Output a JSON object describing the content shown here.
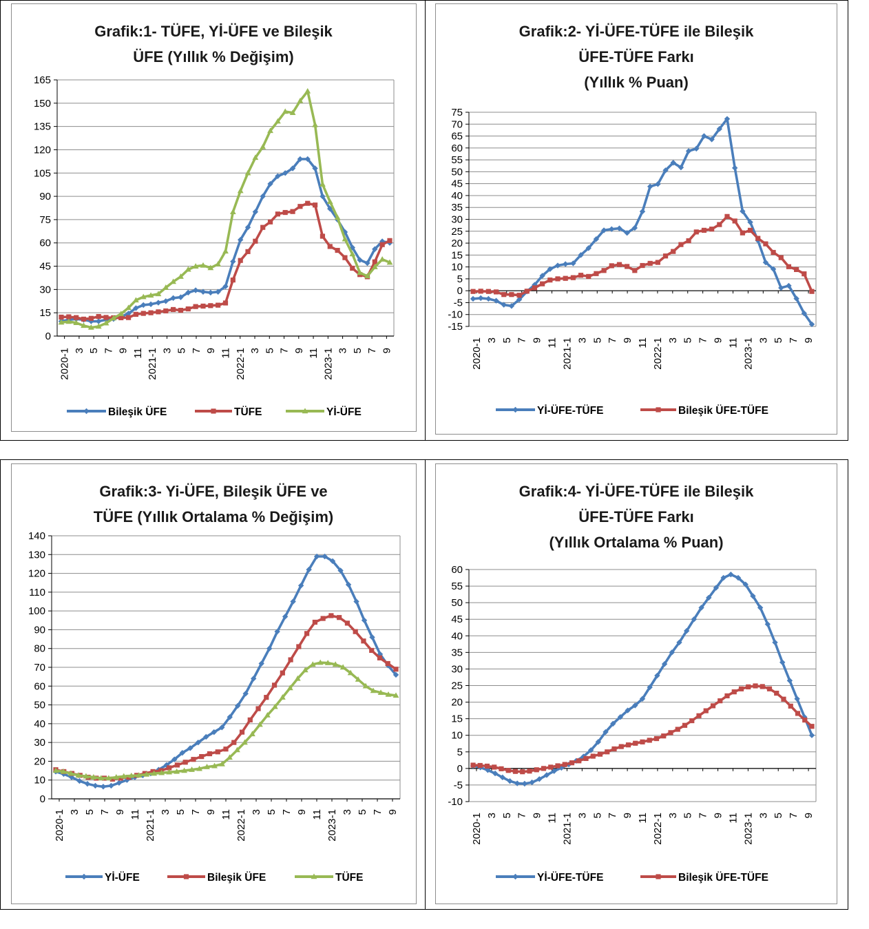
{
  "colors": {
    "blue": "#4a7ebb",
    "red": "#be4b48",
    "green": "#98b954",
    "grid": "#8c8c8c",
    "axis": "#000000"
  },
  "chart_data": [
    {
      "id": "chart1",
      "type": "line",
      "title_lines": [
        "Grafik:1- TÜFE, Yİ-ÜFE ve Bileşik",
        "ÜFE (Yıllık % Değişim)"
      ],
      "ylim": [
        0,
        165
      ],
      "yticks": [
        0,
        15,
        30,
        45,
        60,
        75,
        90,
        105,
        120,
        135,
        150,
        165
      ],
      "x_ticks": [
        "2020-1",
        "3",
        "5",
        "7",
        "9",
        "11",
        "2021-1",
        "3",
        "5",
        "7",
        "9",
        "11",
        "2022-1",
        "3",
        "5",
        "7",
        "9",
        "11",
        "2023-1",
        "3",
        "5",
        "7",
        "9"
      ],
      "legend": [
        "Bileşik ÜFE",
        "TÜFE",
        "Yİ-ÜFE"
      ],
      "series": [
        {
          "name": "Bileşik ÜFE",
          "color": "blue",
          "marker": "diamond",
          "values": [
            9.5,
            10.5,
            11,
            10.5,
            9.5,
            9.5,
            10.5,
            11,
            12.5,
            14.5,
            18,
            20,
            20.5,
            21.5,
            22.5,
            24.5,
            25,
            28,
            29.5,
            28.5,
            28,
            28.5,
            32,
            48,
            62,
            70,
            80,
            90,
            98,
            103,
            105,
            108,
            114,
            114,
            108,
            90,
            82,
            75,
            67,
            57,
            49,
            47,
            56,
            61,
            60
          ]
        },
        {
          "name": "TÜFE",
          "color": "red",
          "marker": "square",
          "values": [
            12.2,
            12.4,
            11.9,
            10.9,
            11.4,
            12.6,
            12.0,
            11.8,
            11.8,
            11.9,
            14.0,
            14.6,
            15.0,
            15.6,
            16.2,
            17.1,
            16.6,
            17.5,
            19.0,
            19.3,
            19.6,
            19.9,
            21.3,
            36.1,
            48.7,
            54.4,
            61.1,
            70.0,
            73.5,
            78.6,
            79.6,
            80.2,
            83.5,
            85.5,
            84.4,
            64.3,
            57.7,
            55.2,
            50.5,
            43.7,
            39.6,
            38.2,
            47.8,
            58.9,
            61.5
          ]
        },
        {
          "name": "Yİ-ÜFE",
          "color": "green",
          "marker": "triangle",
          "values": [
            8.8,
            9.3,
            8.5,
            6.7,
            5.5,
            6.2,
            8.3,
            11.5,
            14.3,
            18.2,
            23.1,
            25.2,
            26.2,
            27.1,
            31.2,
            35.0,
            38.3,
            42.9,
            44.9,
            45.5,
            43.9,
            46.3,
            54.6,
            79.9,
            93.5,
            105.0,
            114.9,
            121.8,
            132.2,
            138.3,
            144.6,
            143.8,
            151.5,
            157.7,
            136.0,
            97.7,
            86.5,
            76.3,
            62.4,
            52.8,
            40.8,
            38.6,
            44.5,
            49.4,
            47.4
          ]
        }
      ]
    },
    {
      "id": "chart2",
      "type": "line",
      "title_lines": [
        "Grafik:2- Yİ-ÜFE-TÜFE ile  Bileşik",
        "ÜFE-TÜFE Farkı",
        "(Yıllık % Puan)"
      ],
      "ylim": [
        -15,
        75
      ],
      "yticks": [
        -15,
        -10,
        -5,
        0,
        5,
        10,
        15,
        20,
        25,
        30,
        35,
        40,
        45,
        50,
        55,
        60,
        65,
        70,
        75
      ],
      "x_ticks": [
        "2020-1",
        "3",
        "5",
        "7",
        "9",
        "11",
        "2021-1",
        "3",
        "5",
        "7",
        "9",
        "11",
        "2022-1",
        "3",
        "5",
        "7",
        "9",
        "11",
        "2023-1",
        "3",
        "5",
        "7",
        "9"
      ],
      "legend": [
        "Yİ-ÜFE-TÜFE",
        "Bileşik ÜFE-TÜFE"
      ],
      "series": [
        {
          "name": "Yİ-ÜFE-TÜFE",
          "color": "blue",
          "marker": "diamond",
          "values": [
            -3.4,
            -3.1,
            -3.4,
            -4.2,
            -5.9,
            -6.4,
            -3.7,
            -0.3,
            2.5,
            6.3,
            9.1,
            10.6,
            11.2,
            11.5,
            15.0,
            17.9,
            21.7,
            25.4,
            25.9,
            26.2,
            24.3,
            26.4,
            33.3,
            43.8,
            44.8,
            50.6,
            53.8,
            51.8,
            58.7,
            59.7,
            65.0,
            63.6,
            68.0,
            72.2,
            51.6,
            33.4,
            28.8,
            21.1,
            11.9,
            9.1,
            1.2,
            2.1,
            -3.3,
            -9.5,
            -14.1
          ]
        },
        {
          "name": "Bileşik ÜFE-TÜFE",
          "color": "red",
          "marker": "square",
          "values": [
            -0.3,
            -0.2,
            -0.3,
            -0.5,
            -1.6,
            -1.6,
            -1.9,
            -0.2,
            1.2,
            2.9,
            4.5,
            5.0,
            5.2,
            5.5,
            6.5,
            6.0,
            7.2,
            8.5,
            10.5,
            11.0,
            10.2,
            8.5,
            10.6,
            11.5,
            11.9,
            14.6,
            16.5,
            19.4,
            21.0,
            24.7,
            25.4,
            25.9,
            27.8,
            31.2,
            29.3,
            24.3,
            25.4,
            22.0,
            19.7,
            16.1,
            13.9,
            10.1,
            8.9,
            7.1,
            -0.3
          ]
        }
      ]
    },
    {
      "id": "chart3",
      "type": "line",
      "title_lines": [
        "Grafik:3- Yi-ÜFE, Bileşik ÜFE ve",
        "TÜFE (Yıllık Ortalama % Değişim)"
      ],
      "ylim": [
        0,
        140
      ],
      "yticks": [
        0,
        10,
        20,
        30,
        40,
        50,
        60,
        70,
        80,
        90,
        100,
        110,
        120,
        130,
        140
      ],
      "x_ticks": [
        "2020-1",
        "3",
        "5",
        "7",
        "9",
        "11",
        "2021-1",
        "3",
        "5",
        "7",
        "9",
        "11",
        "2022-1",
        "3",
        "5",
        "7",
        "9",
        "11",
        "2023-1",
        "3",
        "5",
        "7",
        "9"
      ],
      "legend": [
        "Yİ-ÜFE",
        "Bileşik ÜFE",
        "TÜFE"
      ],
      "series": [
        {
          "name": "Yİ-ÜFE",
          "color": "blue",
          "marker": "diamond",
          "values": [
            14.5,
            13.2,
            11.5,
            9.5,
            8,
            7,
            6.5,
            7,
            8.5,
            10,
            11.5,
            12.5,
            13.5,
            15.5,
            18,
            21,
            24.5,
            27,
            30,
            33,
            35.5,
            38,
            43.5,
            49.5,
            56,
            64,
            72,
            80,
            89,
            97,
            105,
            113.5,
            122,
            129,
            129,
            126.5,
            121.5,
            114,
            105,
            95,
            86,
            77,
            71,
            66
          ]
        },
        {
          "name": "Bileşik ÜFE",
          "color": "red",
          "marker": "square",
          "values": [
            15.5,
            14.5,
            13.5,
            12.5,
            11.5,
            11,
            11,
            10.5,
            11,
            11.5,
            12.5,
            13.5,
            14.5,
            15,
            16.5,
            18,
            19.5,
            21,
            22.5,
            24,
            25,
            26.5,
            30,
            35.5,
            42,
            48,
            54,
            60.5,
            67,
            74,
            81,
            88,
            94,
            96,
            97.5,
            96.5,
            93.5,
            89,
            84,
            79,
            75,
            72,
            69
          ]
        },
        {
          "name": "TÜFE",
          "color": "green",
          "marker": "triangle",
          "values": [
            15,
            14.5,
            13.5,
            12.5,
            12,
            11.5,
            11,
            11,
            11.5,
            12,
            12.3,
            12.5,
            13,
            13.5,
            13.8,
            14.2,
            14.5,
            15,
            15.5,
            16,
            17,
            17.5,
            18.5,
            22,
            26,
            30,
            34.5,
            39.5,
            44.5,
            49,
            54,
            59,
            64,
            68.5,
            71.5,
            72.5,
            72.3,
            71.5,
            70,
            67,
            63.5,
            60,
            57.5,
            56.5,
            55.5,
            55
          ]
        }
      ]
    },
    {
      "id": "chart4",
      "type": "line",
      "title_lines": [
        "Grafik:4- Yİ-ÜFE-TÜFE ile  Bileşik",
        "ÜFE-TÜFE Farkı",
        "(Yıllık Ortalama % Puan)"
      ],
      "ylim": [
        -10,
        60
      ],
      "yticks": [
        -10,
        -5,
        0,
        5,
        10,
        15,
        20,
        25,
        30,
        35,
        40,
        45,
        50,
        55,
        60
      ],
      "x_ticks": [
        "2020-1",
        "3",
        "5",
        "7",
        "9",
        "11",
        "2021-1",
        "3",
        "5",
        "7",
        "9",
        "11",
        "2022-1",
        "3",
        "5",
        "7",
        "9",
        "11",
        "2023-1",
        "3",
        "5",
        "7",
        "9"
      ],
      "legend": [
        "Yİ-ÜFE-TÜFE",
        "Bileşik ÜFE-TÜFE"
      ],
      "series": [
        {
          "name": "Yİ-ÜFE-TÜFE",
          "color": "blue",
          "marker": "diamond",
          "values": [
            0.8,
            0.3,
            -0.5,
            -1.5,
            -2.7,
            -3.8,
            -4.5,
            -4.6,
            -4.2,
            -3.2,
            -2,
            -0.8,
            0.2,
            1.2,
            2.3,
            3.6,
            5.5,
            8,
            11,
            13.5,
            15.5,
            17.5,
            19,
            21,
            24.5,
            28,
            31.5,
            35,
            38,
            41.5,
            45,
            48.5,
            51.5,
            54.5,
            57.5,
            58.5,
            57.5,
            55.5,
            52,
            48.5,
            43.5,
            38,
            32,
            26.5,
            21,
            15.5,
            10
          ]
        },
        {
          "name": "Bileşik ÜFE-TÜFE",
          "color": "red",
          "marker": "square",
          "values": [
            1,
            0.9,
            0.7,
            0.4,
            -0.1,
            -0.6,
            -0.9,
            -1,
            -0.8,
            -0.4,
            0,
            0.4,
            0.8,
            1.2,
            1.7,
            2.3,
            3,
            3.7,
            4.3,
            5,
            5.9,
            6.6,
            7.1,
            7.6,
            8,
            8.5,
            9,
            9.8,
            10.8,
            11.8,
            13,
            14.4,
            15.9,
            17.4,
            18.9,
            20.4,
            21.9,
            23.1,
            24,
            24.6,
            24.9,
            24.7,
            24,
            22.7,
            20.9,
            18.8,
            16.6,
            14.6,
            12.7
          ]
        }
      ]
    }
  ]
}
